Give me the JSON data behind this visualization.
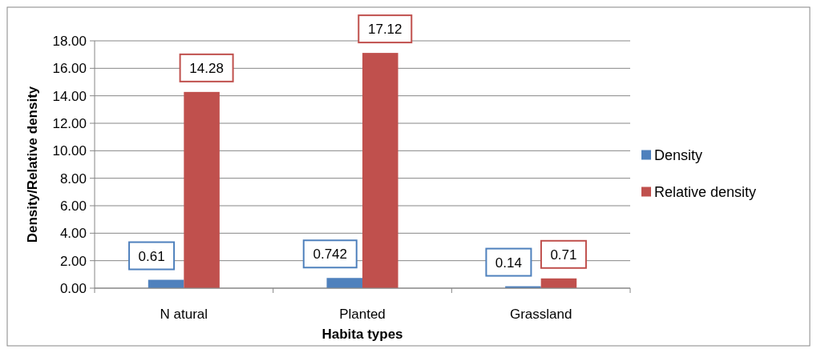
{
  "chart_data": {
    "type": "bar",
    "xlabel": "Habita types",
    "ylabel": "Density/Relative density",
    "categories": [
      "N atural",
      "Planted",
      "Grassland"
    ],
    "series": [
      {
        "name": "Density",
        "color": "#4f81bd",
        "values": [
          0.61,
          0.742,
          0.14
        ]
      },
      {
        "name": "Relative density",
        "color": "#c0504d",
        "values": [
          14.28,
          17.12,
          0.71
        ]
      }
    ],
    "ylim": [
      0,
      18
    ],
    "yticks": [
      {
        "value": 0,
        "label": "0.00"
      },
      {
        "value": 2,
        "label": "2.00"
      },
      {
        "value": 4,
        "label": "4.00"
      },
      {
        "value": 6,
        "label": "6.00"
      },
      {
        "value": 8,
        "label": "8.00"
      },
      {
        "value": 10,
        "label": "10.00"
      },
      {
        "value": 12,
        "label": "12.00"
      },
      {
        "value": 14,
        "label": "14.00"
      },
      {
        "value": 16,
        "label": "16.00"
      },
      {
        "value": 18,
        "label": "18.00"
      }
    ],
    "grid": "y",
    "legend": "right",
    "data_labels": true
  }
}
